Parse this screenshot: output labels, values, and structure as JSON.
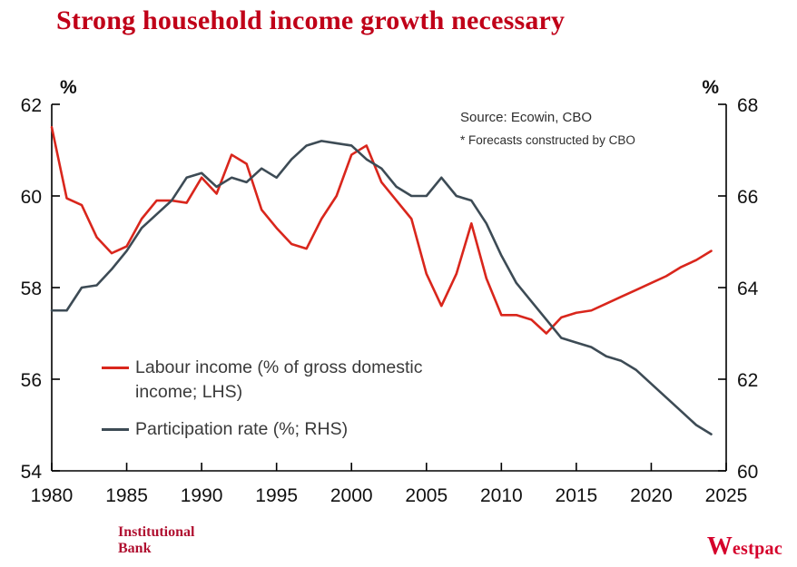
{
  "title": "Strong household income growth necessary",
  "source": {
    "line1": "Source: Ecowin, CBO",
    "line2": "* Forecasts constructed by CBO"
  },
  "legend": [
    {
      "label": "Labour income (% of gross domestic income; LHS)",
      "color": "#d9261c"
    },
    {
      "label": "Participation rate (%; RHS)",
      "color": "#3d4b55"
    }
  ],
  "footer": {
    "division_line1": "Institutional",
    "division_line2": "Bank",
    "brand_w": "W",
    "brand_rest": "estpac"
  },
  "chart_data": {
    "type": "line",
    "title": "Strong household income growth necessary",
    "x_range": [
      1980,
      2025
    ],
    "x": [
      1980,
      1981,
      1982,
      1983,
      1984,
      1985,
      1986,
      1987,
      1988,
      1989,
      1990,
      1991,
      1992,
      1993,
      1994,
      1995,
      1996,
      1997,
      1998,
      1999,
      2000,
      2001,
      2002,
      2003,
      2004,
      2005,
      2006,
      2007,
      2008,
      2009,
      2010,
      2011,
      2012,
      2013,
      2014,
      2015,
      2016,
      2017,
      2018,
      2019,
      2020,
      2021,
      2022,
      2023,
      2024
    ],
    "x_ticks": [
      1980,
      1985,
      1990,
      1995,
      2000,
      2005,
      2010,
      2015,
      2020,
      2025
    ],
    "left_axis": {
      "label": "%",
      "min": 54,
      "max": 62,
      "ticks": [
        62,
        60,
        58,
        56,
        54
      ]
    },
    "right_axis": {
      "label": "%",
      "min": 60,
      "max": 68,
      "ticks": [
        68,
        66,
        64,
        62,
        60
      ]
    },
    "grid": false,
    "legend_position": "inside-lower-left",
    "series": [
      {
        "name": "Labour income (% of gross domestic income; LHS)",
        "axis": "left",
        "color": "#d9261c",
        "values": [
          61.5,
          59.95,
          59.8,
          59.1,
          58.75,
          58.9,
          59.5,
          59.9,
          59.9,
          59.85,
          60.4,
          60.05,
          60.9,
          60.7,
          59.7,
          59.3,
          58.95,
          58.85,
          59.5,
          60.0,
          60.9,
          61.1,
          60.3,
          59.9,
          59.5,
          58.3,
          57.6,
          58.3,
          59.4,
          58.2,
          57.4,
          57.4,
          57.3,
          57.0,
          57.35,
          57.45,
          57.5,
          57.65,
          57.8,
          57.95,
          58.1,
          58.25,
          58.45,
          58.6,
          58.8
        ]
      },
      {
        "name": "Participation rate (%; RHS)",
        "axis": "right",
        "color": "#3d4b55",
        "values": [
          63.5,
          63.5,
          64.0,
          64.05,
          64.4,
          64.8,
          65.3,
          65.6,
          65.9,
          66.4,
          66.5,
          66.2,
          66.4,
          66.3,
          66.6,
          66.4,
          66.8,
          67.1,
          67.2,
          67.15,
          67.1,
          66.8,
          66.6,
          66.2,
          66.0,
          66.0,
          66.4,
          66.0,
          65.9,
          65.4,
          64.7,
          64.1,
          63.7,
          63.3,
          62.9,
          62.8,
          62.7,
          62.5,
          62.4,
          62.2,
          61.9,
          61.6,
          61.3,
          61.0,
          60.8
        ]
      }
    ]
  }
}
